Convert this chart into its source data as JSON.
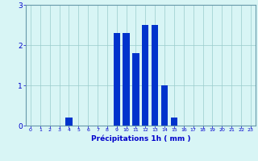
{
  "hours": [
    0,
    1,
    2,
    3,
    4,
    5,
    6,
    7,
    8,
    9,
    10,
    11,
    12,
    13,
    14,
    15,
    16,
    17,
    18,
    19,
    20,
    21,
    22,
    23
  ],
  "values": [
    0,
    0,
    0,
    0,
    0.2,
    0,
    0,
    0,
    0,
    2.3,
    2.3,
    1.8,
    2.5,
    2.5,
    1.0,
    0.2,
    0,
    0,
    0,
    0,
    0,
    0,
    0,
    0
  ],
  "bar_color": "#0033cc",
  "background_color": "#d8f5f5",
  "grid_color": "#99cccc",
  "xlabel": "Précipitations 1h ( mm )",
  "xlabel_color": "#0000cc",
  "tick_color": "#0000cc",
  "axis_color": "#6699aa",
  "ylim": [
    0,
    3
  ],
  "yticks": [
    0,
    1,
    2,
    3
  ],
  "xlim": [
    -0.5,
    23.5
  ]
}
